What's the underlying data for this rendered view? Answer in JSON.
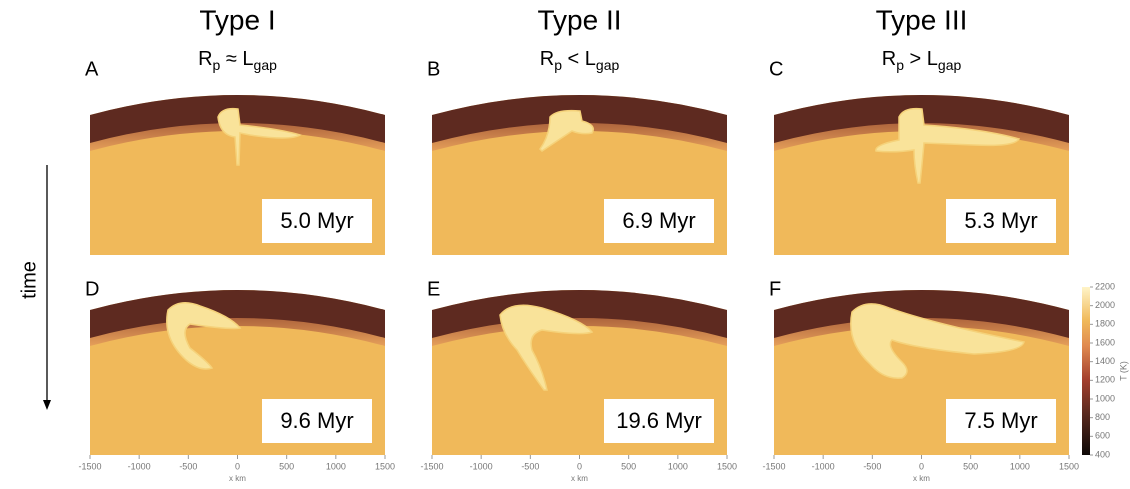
{
  "columns": [
    {
      "title": "Type I",
      "subtitle": [
        {
          "text": "R"
        },
        {
          "text": "p",
          "sub": true
        },
        {
          "text": " ≈ L"
        },
        {
          "text": "gap",
          "sub": true
        }
      ]
    },
    {
      "title": "Type II",
      "subtitle": [
        {
          "text": "R"
        },
        {
          "text": "p",
          "sub": true
        },
        {
          "text": " < L"
        },
        {
          "text": "gap",
          "sub": true
        }
      ]
    },
    {
      "title": "Type III",
      "subtitle": [
        {
          "text": "R"
        },
        {
          "text": "p",
          "sub": true
        },
        {
          "text": " > L"
        },
        {
          "text": "gap",
          "sub": true
        }
      ]
    }
  ],
  "panels": [
    {
      "letter": "A",
      "time": "5.0 Myr"
    },
    {
      "letter": "B",
      "time": "6.9 Myr"
    },
    {
      "letter": "C",
      "time": "5.3 Myr"
    },
    {
      "letter": "D",
      "time": "9.6 Myr"
    },
    {
      "letter": "E",
      "time": "19.6 Myr"
    },
    {
      "letter": "F",
      "time": "7.5 Myr"
    }
  ],
  "side_label": "time",
  "x_axis": {
    "label": "x km",
    "lim": [
      -1500,
      1500
    ],
    "ticks": [
      -1500,
      -1000,
      -500,
      0,
      500,
      1000,
      1500
    ]
  },
  "colorbar": {
    "label": "T (K)",
    "lim": [
      400,
      2200
    ],
    "ticks": [
      400,
      600,
      800,
      1000,
      1200,
      1400,
      1600,
      1800,
      2000,
      2200
    ]
  }
}
